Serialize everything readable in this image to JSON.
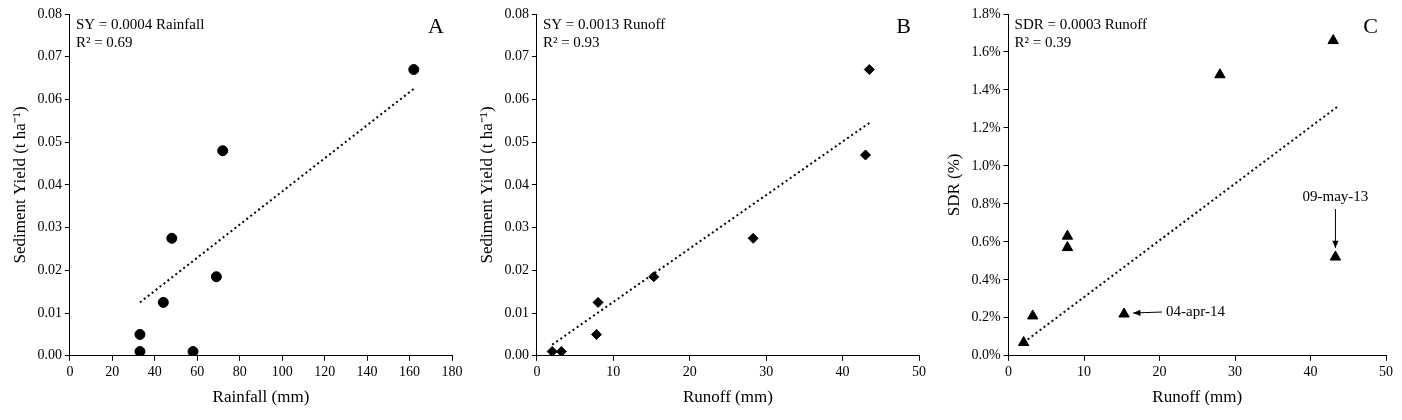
{
  "chart_data": [
    {
      "type": "scatter",
      "panel_label": "A",
      "x_label": "Rainfall (mm)",
      "y_label": "Sediment Yield (t ha⁻¹)",
      "annotations": [
        {
          "text": "SY = 0.0004 Rainfall"
        },
        {
          "text": "R² = 0.69"
        }
      ],
      "series": [
        {
          "type": "scatter",
          "marker": "circle",
          "color": "#000000",
          "x": [
            33,
            33,
            44,
            48,
            58,
            69,
            72,
            162
          ],
          "values": [
            0.001,
            0.005,
            0.0125,
            0.0275,
            0.001,
            0.0185,
            0.048,
            0.067
          ]
        },
        {
          "type": "line",
          "line_style": "dotted",
          "color": "#000000",
          "x": [
            33,
            162
          ],
          "values": [
            0.0125,
            0.0625
          ]
        }
      ],
      "xlim": [
        0,
        180
      ],
      "xticks": [
        0,
        20,
        40,
        60,
        80,
        100,
        120,
        140,
        160,
        180
      ],
      "ylim": [
        0,
        0.08
      ],
      "yticks": [
        {
          "value": 0,
          "label": "0.00"
        },
        {
          "value": 0.01,
          "label": "0.01"
        },
        {
          "value": 0.02,
          "label": "0.02"
        },
        {
          "value": 0.03,
          "label": "0.03"
        },
        {
          "value": 0.04,
          "label": "0.04"
        },
        {
          "value": 0.05,
          "label": "0.05"
        },
        {
          "value": 0.06,
          "label": "0.06"
        },
        {
          "value": 0.07,
          "label": "0.07"
        },
        {
          "value": 0.08,
          "label": "0.08"
        }
      ],
      "grid": false
    },
    {
      "type": "scatter",
      "panel_label": "B",
      "x_label": "Runoff (mm)",
      "y_label": "Sediment Yield (t ha⁻¹)",
      "annotations": [
        {
          "text": "SY = 0.0013 Runoff"
        },
        {
          "text": "R² = 0.93"
        }
      ],
      "series": [
        {
          "type": "scatter",
          "marker": "diamond",
          "color": "#000000",
          "x": [
            2,
            3.2,
            7.8,
            8,
            15.3,
            28.3,
            43,
            43.5
          ],
          "values": [
            0.001,
            0.001,
            0.005,
            0.0125,
            0.0185,
            0.0275,
            0.047,
            0.067
          ]
        },
        {
          "type": "line",
          "line_style": "dotted",
          "color": "#000000",
          "x": [
            2,
            43.5
          ],
          "values": [
            0.0026,
            0.0545
          ]
        }
      ],
      "xlim": [
        0,
        50
      ],
      "xticks": [
        0,
        10,
        20,
        30,
        40,
        50
      ],
      "ylim": [
        0,
        0.08
      ],
      "yticks": [
        {
          "value": 0,
          "label": "0.00"
        },
        {
          "value": 0.01,
          "label": "0.01"
        },
        {
          "value": 0.02,
          "label": "0.02"
        },
        {
          "value": 0.03,
          "label": "0.03"
        },
        {
          "value": 0.04,
          "label": "0.04"
        },
        {
          "value": 0.05,
          "label": "0.05"
        },
        {
          "value": 0.06,
          "label": "0.06"
        },
        {
          "value": 0.07,
          "label": "0.07"
        },
        {
          "value": 0.08,
          "label": "0.08"
        }
      ],
      "grid": false
    },
    {
      "type": "scatter",
      "panel_label": "C",
      "x_label": "Runoff (mm)",
      "y_label": "SDR (%)",
      "annotations": [
        {
          "text": "SDR = 0.0003 Runoff"
        },
        {
          "text": "R² = 0.39"
        },
        {
          "text": "09-may-13",
          "x": 43.3,
          "y": 0.52
        },
        {
          "text": "04-apr-14",
          "x": 15.3,
          "y": 0.22
        }
      ],
      "series": [
        {
          "type": "scatter",
          "marker": "triangle",
          "color": "#000000",
          "x": [
            2,
            3.2,
            7.8,
            7.8,
            15.3,
            28,
            43,
            43.3
          ],
          "values": [
            0.07,
            0.21,
            0.57,
            0.63,
            0.22,
            1.48,
            1.66,
            0.52
          ]
        },
        {
          "type": "line",
          "line_style": "dotted",
          "color": "#000000",
          "x": [
            2,
            43.5
          ],
          "values": [
            0.07,
            1.31
          ]
        }
      ],
      "xlim": [
        0,
        50
      ],
      "xticks": [
        0,
        10,
        20,
        30,
        40,
        50
      ],
      "ylim": [
        0,
        1.8
      ],
      "yticks": [
        {
          "value": 0,
          "label": "0.0%"
        },
        {
          "value": 0.2,
          "label": "0.2%"
        },
        {
          "value": 0.4,
          "label": "0.4%"
        },
        {
          "value": 0.6,
          "label": "0.6%"
        },
        {
          "value": 0.8,
          "label": "0.8%"
        },
        {
          "value": 1.0,
          "label": "1.0%"
        },
        {
          "value": 1.2,
          "label": "1.2%"
        },
        {
          "value": 1.4,
          "label": "1.4%"
        },
        {
          "value": 1.6,
          "label": "1.6%"
        },
        {
          "value": 1.8,
          "label": "1.8%"
        }
      ],
      "grid": false
    }
  ]
}
